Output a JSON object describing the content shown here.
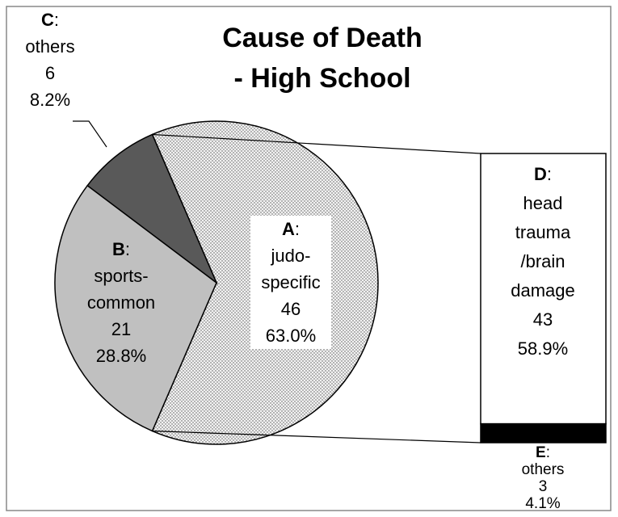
{
  "chart_data": {
    "type": "pie-of-bar",
    "title": "Cause of Death - High School",
    "label_separator": ":",
    "pie": {
      "letters": [
        "A",
        "B",
        "C"
      ],
      "names": [
        "judo-specific",
        "sports-common",
        "others"
      ],
      "values": [
        46,
        21,
        6
      ],
      "percents": [
        63.0,
        28.8,
        8.2
      ],
      "percent_labels": [
        "63.0%",
        "28.8%",
        "8.2%"
      ],
      "colors": [
        "#f2f2f2",
        "#c0c0c0",
        "#595959"
      ]
    },
    "bar": {
      "letters": [
        "D",
        "E"
      ],
      "names": [
        "head trauma /brain damage",
        "others"
      ],
      "values": [
        43,
        3
      ],
      "percents": [
        58.9,
        4.1
      ],
      "percent_labels": [
        "58.9%",
        "4.1%"
      ],
      "colors": [
        "#ffffff",
        "#000000"
      ]
    }
  }
}
